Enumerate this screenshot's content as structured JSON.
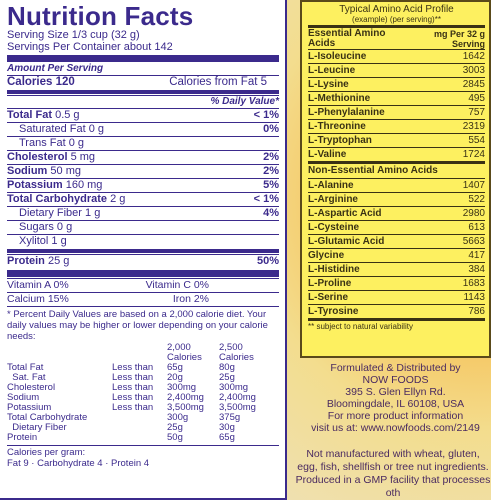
{
  "nutrition": {
    "title": "Nutrition Facts",
    "serving_size": "Serving Size 1/3 cup (32 g)",
    "servings": "Servings Per Container about 142",
    "amount_per_serving": "Amount Per Serving",
    "calories": "Calories 120",
    "calories_fat": "Calories from Fat 5",
    "daily_value_header": "% Daily Value*",
    "rows": [
      {
        "label": "Total Fat",
        "amount": "0.5 g",
        "dv": "< 1%",
        "bold": true,
        "sub": false
      },
      {
        "label": "Saturated Fat",
        "amount": "0 g",
        "dv": "0%",
        "bold": false,
        "sub": true
      },
      {
        "label": "Trans Fat",
        "amount": "0 g",
        "dv": "",
        "bold": false,
        "sub": true
      },
      {
        "label": "Cholesterol",
        "amount": "5 mg",
        "dv": "2%",
        "bold": true,
        "sub": false
      },
      {
        "label": "Sodium",
        "amount": "50 mg",
        "dv": "2%",
        "bold": true,
        "sub": false
      },
      {
        "label": "Potassium",
        "amount": "160 mg",
        "dv": "5%",
        "bold": true,
        "sub": false
      },
      {
        "label": "Total Carbohydrate",
        "amount": "2 g",
        "dv": "< 1%",
        "bold": true,
        "sub": false
      },
      {
        "label": "Dietary Fiber",
        "amount": "1 g",
        "dv": "4%",
        "bold": false,
        "sub": true
      },
      {
        "label": "Sugars",
        "amount": "0 g",
        "dv": "",
        "bold": false,
        "sub": true
      },
      {
        "label": "Xylitol",
        "amount": "1 g",
        "dv": "",
        "bold": false,
        "sub": true
      }
    ],
    "protein": {
      "label": "Protein",
      "amount": "25 g",
      "dv": "50%"
    },
    "vitamins": [
      {
        "left": "Vitamin A 0%",
        "right": "Vitamin C 0%"
      },
      {
        "left": "Calcium 15%",
        "right": "Iron 2%"
      }
    ],
    "footnote": "* Percent Daily Values are based on a 2,000 calorie diet. Your daily values may be higher or lower depending on your calorie needs:",
    "table": {
      "header": [
        "",
        "",
        "2,000 Calories",
        "2,500 Calories"
      ],
      "rows": [
        [
          "Total Fat",
          "Less than",
          "65g",
          "80g"
        ],
        [
          "  Sat. Fat",
          "Less than",
          "20g",
          "25g"
        ],
        [
          "Cholesterol",
          "Less than",
          "300mg",
          "300mg"
        ],
        [
          "Sodium",
          "Less than",
          "2,400mg",
          "2,400mg"
        ],
        [
          "Potassium",
          "Less than",
          "3,500mg",
          "3,500mg"
        ],
        [
          "Total Carbohydrate",
          "",
          "300g",
          "375g"
        ],
        [
          "  Dietary Fiber",
          "",
          "25g",
          "30g"
        ],
        [
          "Protein",
          "",
          "50g",
          "65g"
        ]
      ]
    },
    "calories_per_gram": "Calories per gram:",
    "calories_per_gram_values": "Fat 9 · Carbohydrate 4 · Protein 4"
  },
  "amino": {
    "title": "Typical Amino Acid Profile",
    "subtitle": "(example) (per serving)**",
    "essential_header": "Essential Amino Acids",
    "unit_header": "mg Per 32 g Serving",
    "essential": [
      {
        "name": "L-Isoleucine",
        "mg": "1642"
      },
      {
        "name": "L-Leucine",
        "mg": "3003"
      },
      {
        "name": "L-Lysine",
        "mg": "2845"
      },
      {
        "name": "L-Methionine",
        "mg": "495"
      },
      {
        "name": "L-Phenylalanine",
        "mg": "757"
      },
      {
        "name": "L-Threonine",
        "mg": "2319"
      },
      {
        "name": "L-Tryptophan",
        "mg": "554"
      },
      {
        "name": "L-Valine",
        "mg": "1724"
      }
    ],
    "nonessential_header": "Non-Essential Amino Acids",
    "nonessential": [
      {
        "name": "L-Alanine",
        "mg": "1407"
      },
      {
        "name": "L-Arginine",
        "mg": "522"
      },
      {
        "name": "L-Aspartic Acid",
        "mg": "2980"
      },
      {
        "name": "L-Cysteine",
        "mg": "613"
      },
      {
        "name": "L-Glutamic Acid",
        "mg": "5663"
      },
      {
        "name": "Glycine",
        "mg": "417"
      },
      {
        "name": "L-Histidine",
        "mg": "384"
      },
      {
        "name": "L-Proline",
        "mg": "1683"
      },
      {
        "name": "L-Serine",
        "mg": "1143"
      },
      {
        "name": "L-Tyrosine",
        "mg": "786"
      }
    ],
    "footnote": "** subject to natural variability"
  },
  "distributor": {
    "line1": "Formulated & Distributed by",
    "line2": "NOW FOODS",
    "line3": "395 S. Glen Ellyn Rd.",
    "line4": "Bloomingdale, IL 60108, USA",
    "line5": "For more product information",
    "line6": "visit us at: www.nowfoods.com/2149"
  },
  "warning": "Not manufactured with wheat, gluten, egg, fish, shellfish or tree nut ingredients. Produced in a GMP facility that processes oth"
}
